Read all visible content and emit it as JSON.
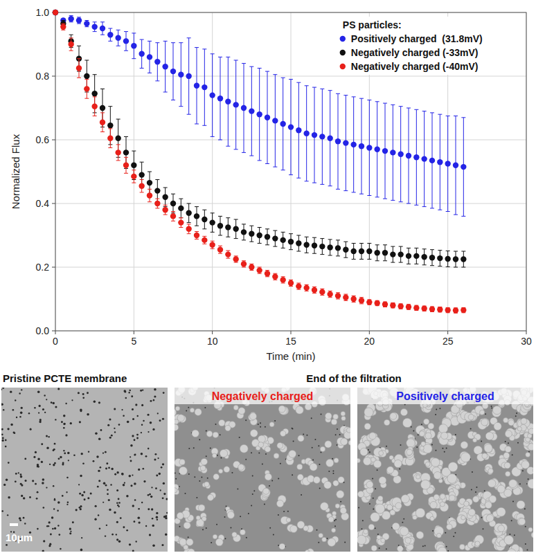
{
  "chart_data": {
    "type": "scatter",
    "x_label": "Time (min)",
    "y_label": "Normalized Flux",
    "legend_title": "PS particles:",
    "legend": "upper right",
    "grid": true,
    "marker": "circle",
    "xlim": [
      0,
      30
    ],
    "xticks": [
      0,
      5,
      10,
      15,
      20,
      25,
      30
    ],
    "ylim": [
      0,
      1
    ],
    "yticks": [
      {
        "value": 0,
        "label": "0.0"
      },
      0.2,
      0.4,
      0.6,
      0.8,
      {
        "value": 1,
        "label": "1.0"
      }
    ],
    "x": [
      0,
      0.5,
      1,
      1.5,
      2,
      2.5,
      3,
      3.5,
      4,
      4.5,
      5,
      5.5,
      6,
      6.5,
      7,
      7.5,
      8,
      8.5,
      9,
      9.5,
      10,
      10.5,
      11,
      11.5,
      12,
      12.5,
      13,
      13.5,
      14,
      14.5,
      15,
      15.5,
      16,
      16.5,
      17,
      17.5,
      18,
      18.5,
      19,
      19.5,
      20,
      20.5,
      21,
      21.5,
      22,
      22.5,
      23,
      23.5,
      24,
      24.5,
      25,
      25.5,
      26
    ],
    "series": [
      {
        "name": "Positively charged  (31.8mV)",
        "color": "#2424e6",
        "values": [
          1.0,
          0.975,
          0.98,
          0.975,
          0.965,
          0.955,
          0.95,
          0.93,
          0.92,
          0.91,
          0.895,
          0.87,
          0.86,
          0.845,
          0.83,
          0.815,
          0.805,
          0.8,
          0.77,
          0.765,
          0.74,
          0.73,
          0.72,
          0.71,
          0.7,
          0.69,
          0.68,
          0.67,
          0.66,
          0.65,
          0.64,
          0.63,
          0.62,
          0.615,
          0.61,
          0.605,
          0.595,
          0.59,
          0.585,
          0.58,
          0.575,
          0.57,
          0.565,
          0.56,
          0.555,
          0.55,
          0.545,
          0.54,
          0.535,
          0.53,
          0.525,
          0.52,
          0.515
        ],
        "error": [
          0,
          0.005,
          0.01,
          0.01,
          0.01,
          0.015,
          0.02,
          0.02,
          0.025,
          0.03,
          0.04,
          0.045,
          0.05,
          0.06,
          0.08,
          0.09,
          0.1,
          0.12,
          0.12,
          0.12,
          0.13,
          0.13,
          0.14,
          0.14,
          0.14,
          0.14,
          0.145,
          0.145,
          0.145,
          0.145,
          0.15,
          0.15,
          0.15,
          0.15,
          0.15,
          0.15,
          0.15,
          0.15,
          0.15,
          0.15,
          0.15,
          0.15,
          0.15,
          0.15,
          0.15,
          0.15,
          0.15,
          0.15,
          0.15,
          0.15,
          0.15,
          0.155,
          0.155
        ]
      },
      {
        "name": "Negatively charged (-33mV)",
        "color": "#111111",
        "values": [
          1.0,
          0.965,
          0.91,
          0.855,
          0.8,
          0.745,
          0.7,
          0.645,
          0.605,
          0.56,
          0.52,
          0.49,
          0.465,
          0.44,
          0.42,
          0.4,
          0.385,
          0.37,
          0.36,
          0.35,
          0.34,
          0.33,
          0.325,
          0.32,
          0.31,
          0.305,
          0.3,
          0.295,
          0.29,
          0.285,
          0.28,
          0.275,
          0.27,
          0.268,
          0.265,
          0.262,
          0.26,
          0.255,
          0.25,
          0.25,
          0.25,
          0.245,
          0.245,
          0.24,
          0.24,
          0.235,
          0.235,
          0.232,
          0.23,
          0.228,
          0.226,
          0.225,
          0.225
        ],
        "error": [
          0,
          0.01,
          0.02,
          0.04,
          0.05,
          0.06,
          0.06,
          0.06,
          0.06,
          0.05,
          0.045,
          0.04,
          0.035,
          0.035,
          0.03,
          0.03,
          0.03,
          0.03,
          0.03,
          0.03,
          0.03,
          0.03,
          0.03,
          0.03,
          0.025,
          0.025,
          0.025,
          0.025,
          0.025,
          0.025,
          0.025,
          0.025,
          0.025,
          0.025,
          0.025,
          0.025,
          0.025,
          0.025,
          0.025,
          0.025,
          0.025,
          0.025,
          0.025,
          0.025,
          0.025,
          0.025,
          0.025,
          0.025,
          0.025,
          0.025,
          0.025,
          0.025,
          0.025
        ]
      },
      {
        "name": "Negatively charged (-40mV)",
        "color": "#e8201a",
        "values": [
          1.0,
          0.955,
          0.9,
          0.825,
          0.76,
          0.705,
          0.655,
          0.605,
          0.56,
          0.52,
          0.485,
          0.455,
          0.425,
          0.4,
          0.38,
          0.36,
          0.34,
          0.32,
          0.3,
          0.285,
          0.27,
          0.255,
          0.24,
          0.225,
          0.21,
          0.2,
          0.19,
          0.18,
          0.17,
          0.16,
          0.15,
          0.14,
          0.135,
          0.128,
          0.122,
          0.115,
          0.11,
          0.105,
          0.1,
          0.095,
          0.09,
          0.087,
          0.083,
          0.08,
          0.077,
          0.075,
          0.072,
          0.07,
          0.068,
          0.067,
          0.065,
          0.064,
          0.065
        ],
        "error": [
          0,
          0.01,
          0.02,
          0.03,
          0.03,
          0.03,
          0.03,
          0.03,
          0.025,
          0.025,
          0.02,
          0.02,
          0.02,
          0.015,
          0.015,
          0.015,
          0.015,
          0.015,
          0.012,
          0.012,
          0.012,
          0.012,
          0.012,
          0.01,
          0.01,
          0.01,
          0.01,
          0.01,
          0.01,
          0.01,
          0.01,
          0.01,
          0.01,
          0.01,
          0.01,
          0.01,
          0.01,
          0.01,
          0.01,
          0.01,
          0.008,
          0.008,
          0.008,
          0.008,
          0.008,
          0.008,
          0.008,
          0.008,
          0.008,
          0.008,
          0.008,
          0.008,
          0.008
        ]
      }
    ]
  },
  "images": {
    "left_title": "Pristine PCTE membrane",
    "group_title": "End of the filtration",
    "subtitles": [
      "Negatively charged",
      "Positively charged"
    ],
    "subtitle_colors": [
      "#e8201a",
      "#2424e6"
    ],
    "scale_bar": "10μm"
  }
}
